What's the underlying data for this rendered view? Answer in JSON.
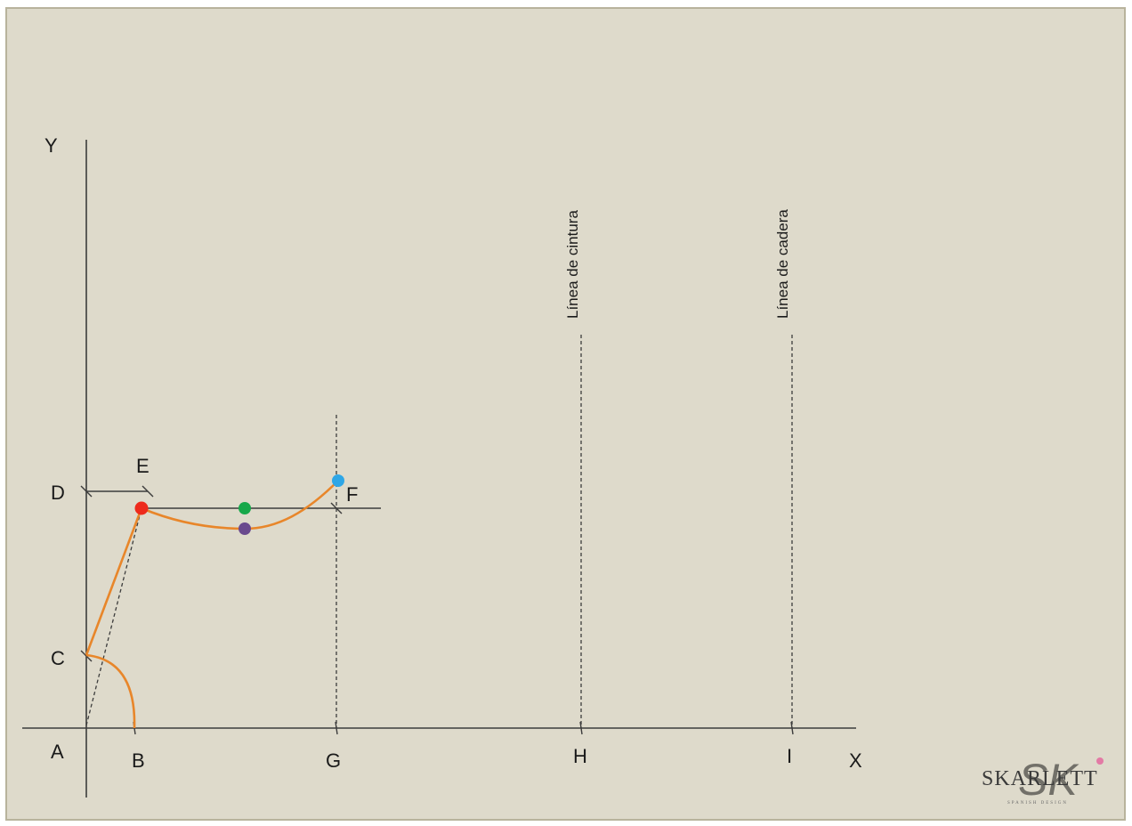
{
  "axes": {
    "y_label": "Y",
    "x_label": "X"
  },
  "points": {
    "A": "A",
    "B": "B",
    "C": "C",
    "D": "D",
    "E": "E",
    "F": "F",
    "G": "G",
    "H": "H",
    "I": "I"
  },
  "guide_lines": {
    "waist": "Línea de cintura",
    "hip": "Línea de cadera"
  },
  "logo": {
    "brand": "SKARLETT",
    "monogram": "SK",
    "tagline": "SPANISH DESIGN"
  },
  "colors": {
    "background": "#dedacb",
    "border": "#b8b39c",
    "line": "#3c3c3c",
    "curve": "#e8862a",
    "dot_red": "#ee2a1c",
    "dot_green": "#17a84a",
    "dot_purple": "#6a4a8e",
    "dot_blue": "#2ea6e6"
  }
}
